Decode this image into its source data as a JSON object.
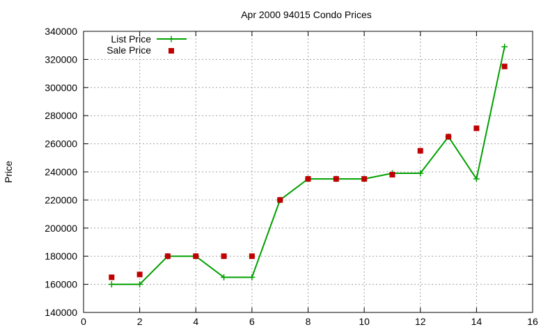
{
  "chart_data": {
    "type": "line",
    "title": "Apr 2000 94015 Condo Prices",
    "xlabel": "",
    "ylabel": "Price",
    "xlim": [
      0,
      16
    ],
    "ylim": [
      140000,
      340000
    ],
    "xticks": [
      0,
      2,
      4,
      6,
      8,
      10,
      12,
      14,
      16
    ],
    "yticks": [
      140000,
      160000,
      180000,
      200000,
      220000,
      240000,
      260000,
      280000,
      300000,
      320000,
      340000
    ],
    "grid": true,
    "legend_position": "top-left",
    "series": [
      {
        "name": "List Price",
        "style": "line-points",
        "color": "#00a000",
        "x": [
          1,
          2,
          3,
          4,
          5,
          6,
          7,
          8,
          9,
          10,
          11,
          12,
          13,
          14,
          15
        ],
        "y": [
          160000,
          160000,
          180000,
          180000,
          165000,
          165000,
          220000,
          235000,
          235000,
          235000,
          239000,
          239000,
          265000,
          235000,
          329000
        ]
      },
      {
        "name": "Sale Price",
        "style": "points",
        "color": "#c00000",
        "x": [
          1,
          2,
          3,
          4,
          5,
          6,
          7,
          8,
          9,
          10,
          11,
          12,
          13,
          14,
          15
        ],
        "y": [
          165000,
          167000,
          180000,
          180000,
          180000,
          180000,
          220000,
          235000,
          235000,
          235000,
          238000,
          255000,
          265000,
          271000,
          315000
        ]
      }
    ]
  }
}
